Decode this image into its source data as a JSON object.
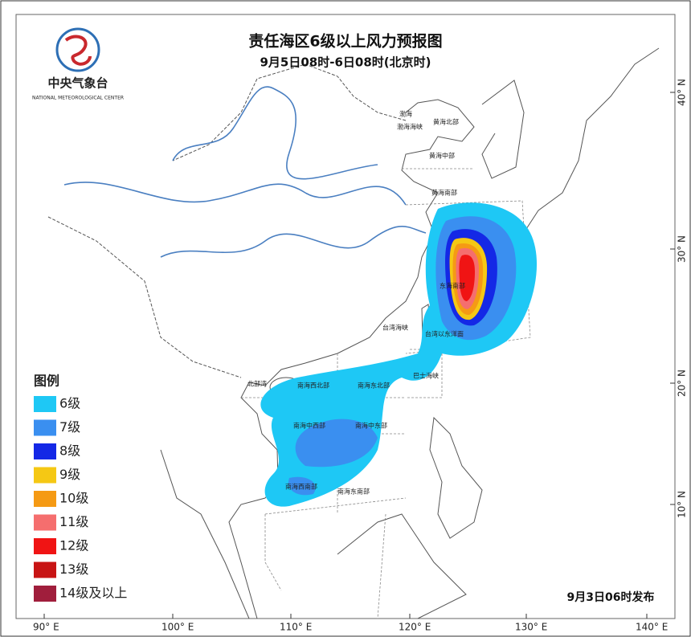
{
  "logo": {
    "name": "中央气象台",
    "english": "NATIONAL METEOROLOGICAL CENTER"
  },
  "title": "责任海区6级以上风力预报图",
  "subtitle": "9月5日08时-6日08时(北京时)",
  "legend": {
    "title": "图例",
    "items": [
      {
        "label": "6级",
        "color": "#1ec8f5"
      },
      {
        "label": "7级",
        "color": "#3a8ff0"
      },
      {
        "label": "8级",
        "color": "#1428e6"
      },
      {
        "label": "9级",
        "color": "#f5c814"
      },
      {
        "label": "10级",
        "color": "#f59a14"
      },
      {
        "label": "11级",
        "color": "#f56e6e"
      },
      {
        "label": "12级",
        "color": "#f01414"
      },
      {
        "label": "13级",
        "color": "#c81414"
      },
      {
        "label": "14级及以上",
        "color": "#a01e3c"
      }
    ]
  },
  "sea_areas": [
    "渤海",
    "渤海海峡",
    "黄海北部",
    "黄海中部",
    "黄海南部",
    "东海南部",
    "台湾海峡",
    "台湾以东洋面",
    "巴士海峡",
    "北部湾",
    "南海西北部",
    "南海东北部",
    "南海中西部",
    "南海中东部",
    "南海西南部",
    "南海东南部"
  ],
  "lon_labels": [
    "90° E",
    "100° E",
    "110° E",
    "120° E",
    "130° E",
    "140° E"
  ],
  "lat_labels": [
    "10° N",
    "20° N",
    "30° N",
    "40° N"
  ],
  "issue_time": "9月3日06时发布"
}
